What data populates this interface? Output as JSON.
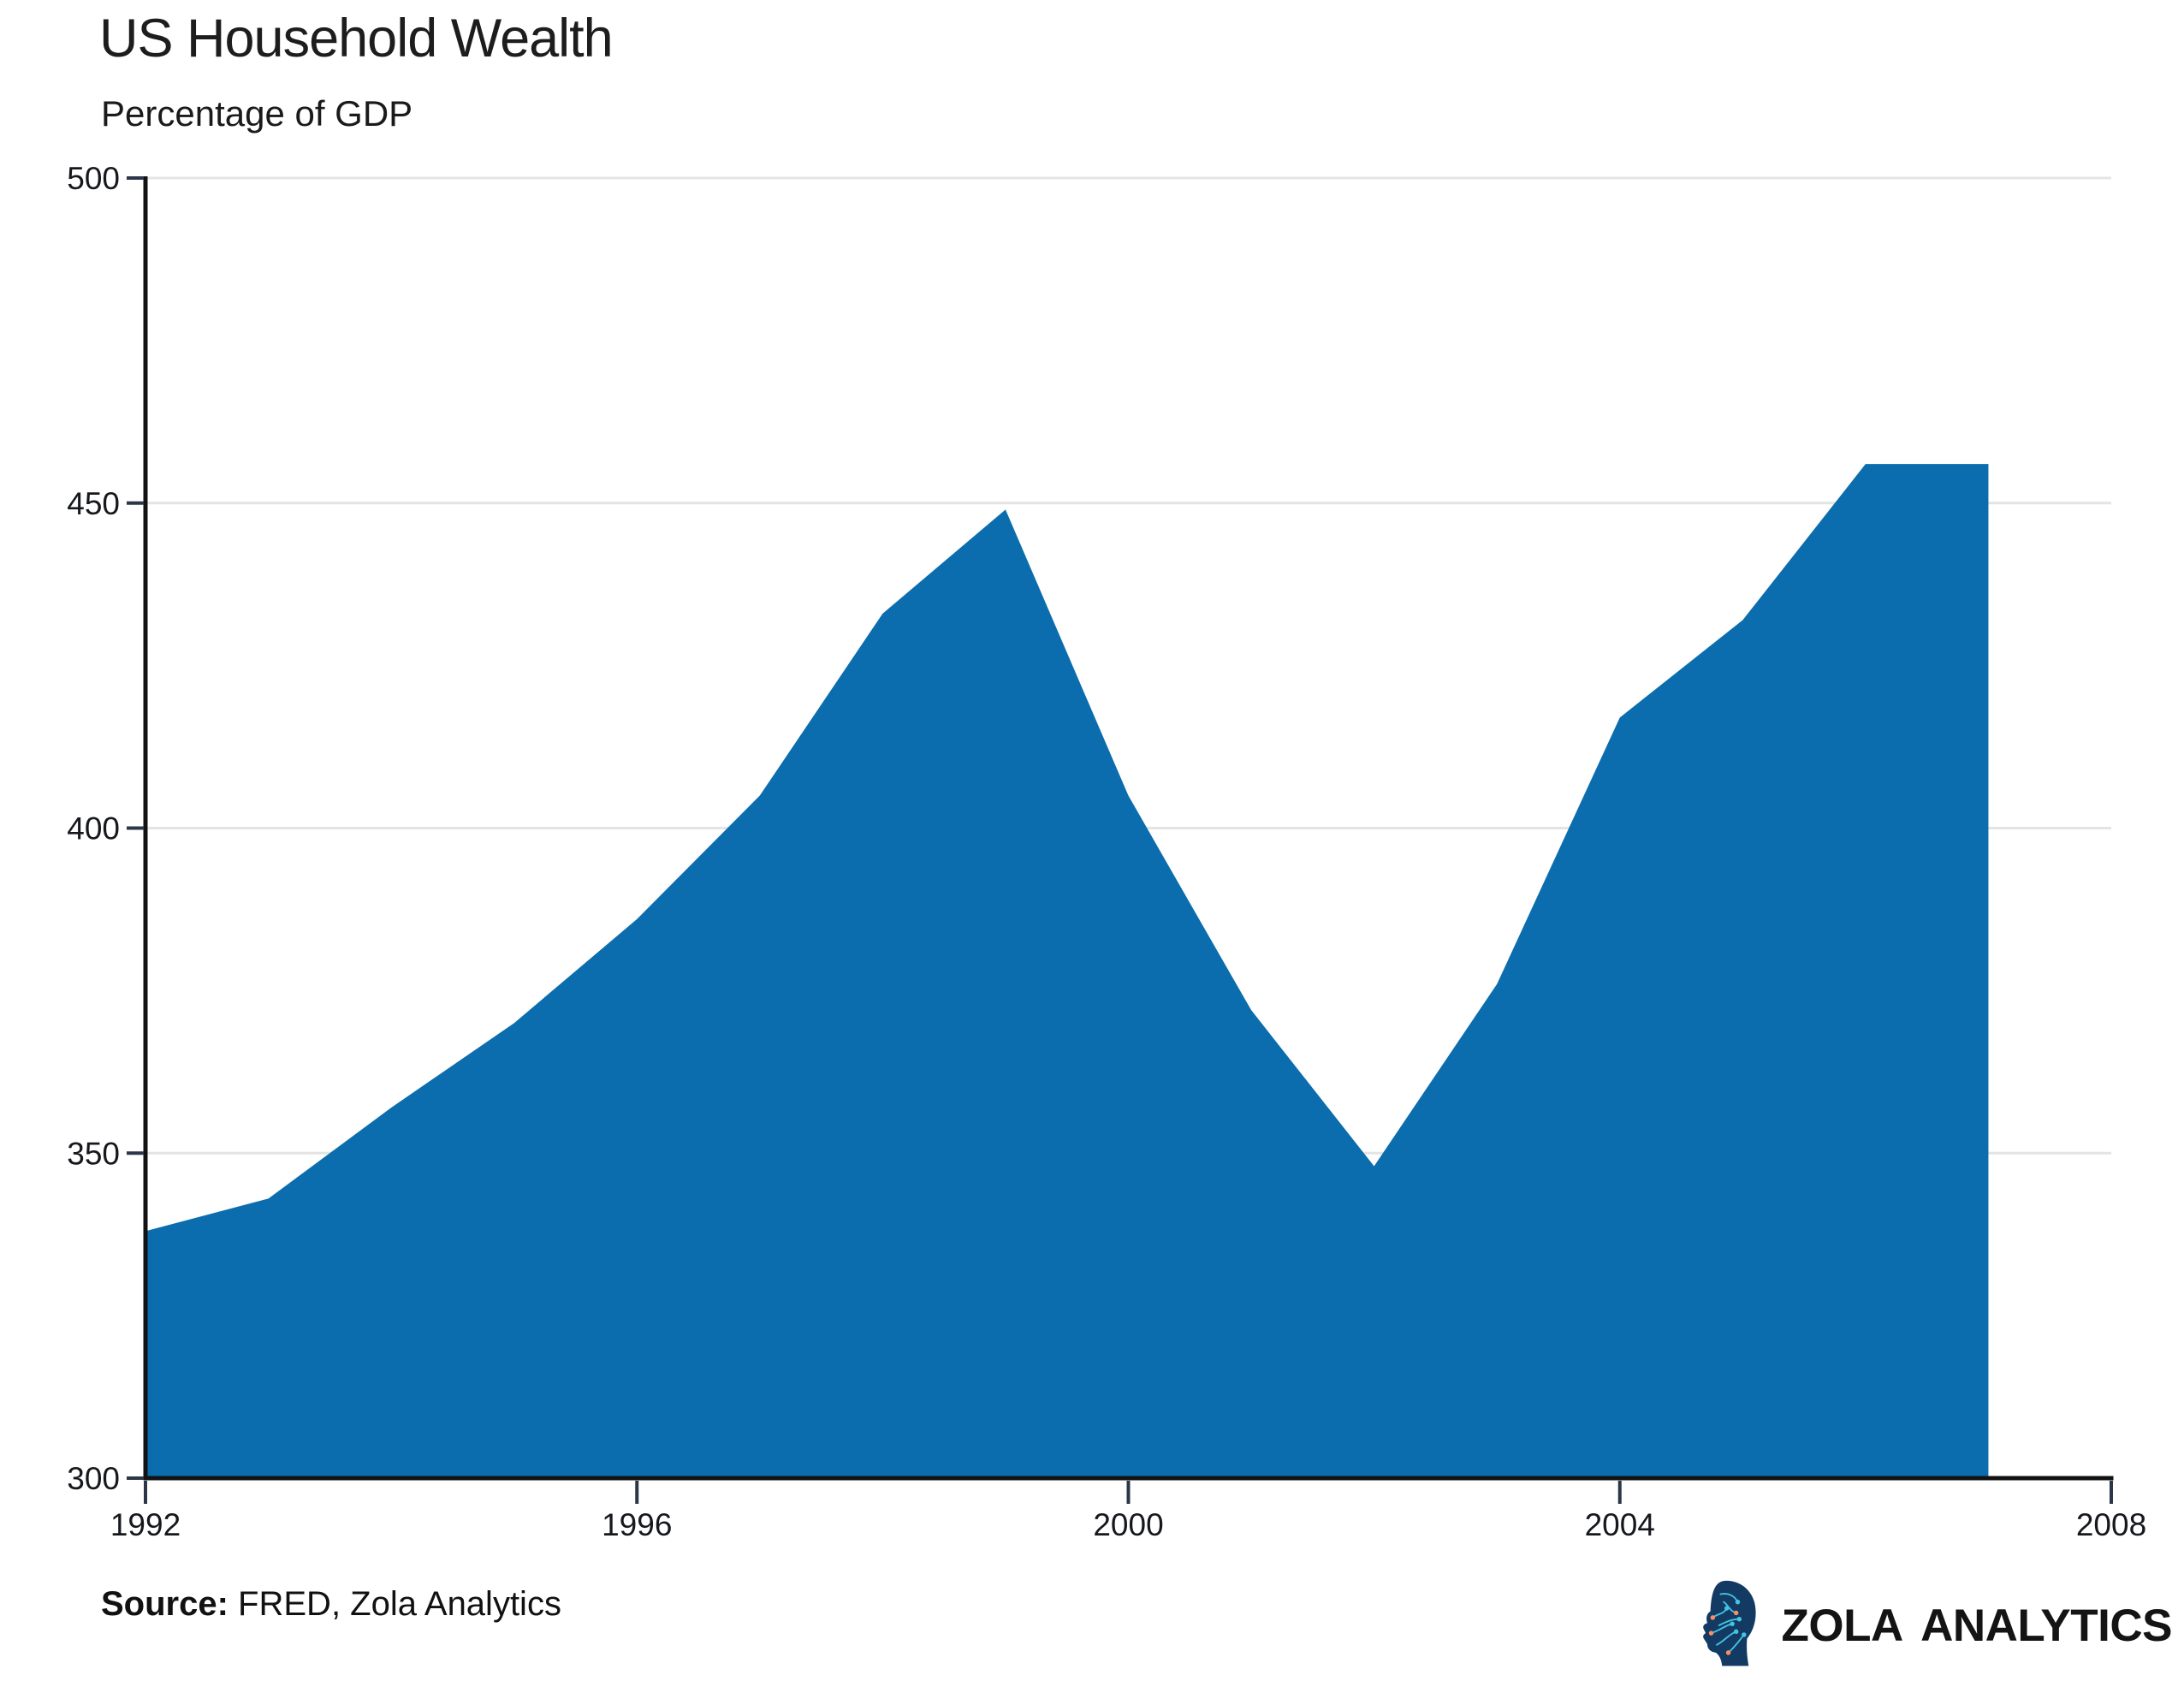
{
  "header": {
    "title": "US Household Wealth",
    "subtitle": "Percentage of GDP"
  },
  "chart_data": {
    "type": "area",
    "title": "US Household Wealth",
    "subtitle": "Percentage of GDP",
    "xlabel": "",
    "ylabel": "Percentage of GDP",
    "x": [
      1992,
      1993,
      1994,
      1995,
      1996,
      1997,
      1998,
      1999,
      2000,
      2001,
      2002,
      2003,
      2004,
      2005,
      2006,
      2007
    ],
    "values": [
      338,
      343,
      357,
      370,
      386,
      405,
      433,
      449,
      405,
      372,
      348,
      376,
      417,
      432,
      456,
      456
    ],
    "xlim": [
      1992,
      2008
    ],
    "ylim": [
      300,
      500
    ],
    "x_ticks": [
      1992,
      1996,
      2000,
      2004,
      2008
    ],
    "y_ticks": [
      300,
      350,
      400,
      450,
      500
    ],
    "grid": "horizontal",
    "legend": "none",
    "colors": {
      "fill": "#0b6dad",
      "axis": "#121212",
      "tick": "#2b3648",
      "gridline": "#e4e4e4",
      "label": "#16181d"
    }
  },
  "footer": {
    "source_label": "Source:",
    "source_text": " FRED, Zola Analytics"
  },
  "logo": {
    "text": "ZOLA ANALYTICS",
    "icon": "circuit-head-icon",
    "colors": {
      "head": "#123a63",
      "circuit": "#45c3e3",
      "accent": "#ff8e5f",
      "text": "#141414"
    }
  }
}
